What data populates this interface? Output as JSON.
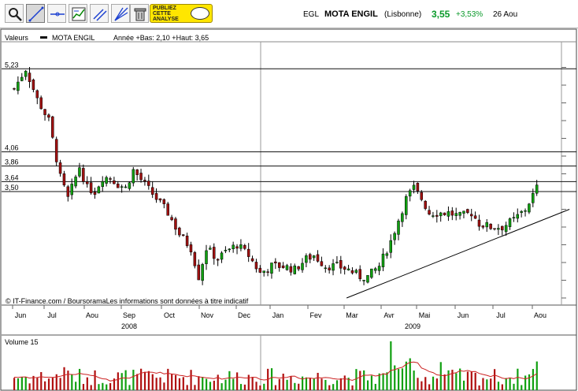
{
  "toolbar": {
    "tools": [
      {
        "name": "zoom-tool",
        "icon": "magnifier-icon"
      },
      {
        "name": "trendline-tool",
        "icon": "trendline-icon",
        "active": true
      },
      {
        "name": "horizontal-line-tool",
        "icon": "horizontal-line-icon"
      },
      {
        "name": "indicator-tool",
        "icon": "chart-indicator-icon"
      },
      {
        "name": "parallel-lines-tool",
        "icon": "parallel-lines-icon"
      },
      {
        "name": "fibonacci-tool",
        "icon": "fan-lines-icon"
      },
      {
        "name": "delete-tool",
        "icon": "trash-icon"
      }
    ],
    "promo_lines": [
      "PUBLIEZ",
      "CETTE",
      "ANALYSE"
    ]
  },
  "quote": {
    "ticker": "EGL",
    "name": "MOTA ENGIL",
    "exchange": "(Lisbonne)",
    "price": "3,55",
    "change": "+3,53%",
    "date": "26 Aou"
  },
  "chart_data": {
    "type": "candlestick",
    "legend": {
      "prefix": "Valeurs",
      "series_name": "MOTA ENGIL",
      "info": "Année +Bas: 2,10 +Haut: 3,65"
    },
    "price_labels": [
      "5,23",
      "4,06",
      "3,86",
      "3,64",
      "3,50"
    ],
    "horizontal_levels": [
      5.23,
      4.06,
      3.86,
      3.64,
      3.5
    ],
    "month_ticks": [
      "Jun",
      "Jul",
      "Aou",
      "Sep",
      "Oct",
      "Nov",
      "Dec",
      "Jan",
      "Fev",
      "Mar",
      "Avr",
      "Mai",
      "Jun",
      "Jul",
      "Aou"
    ],
    "years": [
      "2008",
      "2009"
    ],
    "ylim": [
      1.9,
      5.6
    ],
    "close_path": [
      [
        0,
        4.95
      ],
      [
        3,
        5.23
      ],
      [
        6,
        4.8
      ],
      [
        9,
        4.5
      ],
      [
        12,
        3.7
      ],
      [
        14,
        3.4
      ],
      [
        17,
        3.85
      ],
      [
        19,
        3.55
      ],
      [
        21,
        3.5
      ],
      [
        23,
        3.7
      ],
      [
        25,
        3.7
      ],
      [
        27,
        3.6
      ],
      [
        29,
        3.55
      ],
      [
        31,
        3.8
      ],
      [
        34,
        3.6
      ],
      [
        37,
        3.4
      ],
      [
        40,
        3.2
      ],
      [
        43,
        2.9
      ],
      [
        46,
        2.7
      ],
      [
        48,
        2.3
      ],
      [
        50,
        2.7
      ],
      [
        53,
        2.55
      ],
      [
        55,
        2.65
      ],
      [
        58,
        2.75
      ],
      [
        61,
        2.6
      ],
      [
        64,
        2.35
      ],
      [
        67,
        2.45
      ],
      [
        70,
        2.45
      ],
      [
        73,
        2.4
      ],
      [
        76,
        2.55
      ],
      [
        78,
        2.6
      ],
      [
        81,
        2.45
      ],
      [
        84,
        2.45
      ],
      [
        87,
        2.4
      ],
      [
        90,
        2.3
      ],
      [
        92,
        2.3
      ],
      [
        95,
        2.45
      ],
      [
        98,
        2.8
      ],
      [
        100,
        3.1
      ],
      [
        102,
        3.4
      ],
      [
        104,
        3.55
      ],
      [
        106,
        3.4
      ],
      [
        108,
        3.2
      ],
      [
        110,
        3.2
      ],
      [
        113,
        3.2
      ],
      [
        116,
        3.15
      ],
      [
        119,
        3.2
      ],
      [
        121,
        3.05
      ],
      [
        124,
        3.0
      ],
      [
        127,
        3.0
      ],
      [
        130,
        3.1
      ],
      [
        133,
        3.25
      ],
      [
        135,
        3.45
      ],
      [
        136,
        3.55
      ]
    ],
    "support_line": {
      "from": [
        86.5,
        2.0
      ],
      "to": [
        144.5,
        3.25
      ]
    },
    "volume_label": "Volume 15"
  },
  "footer": {
    "source": "© IT-Finance.com / BoursoramaLes informations sont données à titre indicatif"
  }
}
